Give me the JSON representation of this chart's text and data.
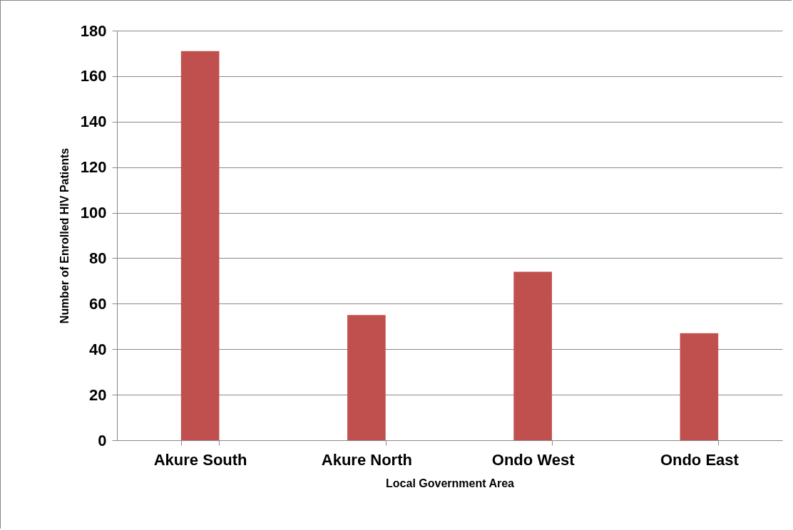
{
  "chart_data": {
    "type": "bar",
    "xlabel": "Local Government Area",
    "ylabel": "Number of Enrolled HIV Patients",
    "categories": [
      "Akure South",
      "Akure North",
      "Ondo West",
      "Ondo East"
    ],
    "values": [
      171,
      55,
      74,
      47
    ],
    "color": "#c0504d",
    "ylim": [
      0,
      180
    ],
    "yticks": [
      0,
      20,
      40,
      60,
      80,
      100,
      120,
      140,
      160,
      180
    ],
    "grid": "y"
  }
}
